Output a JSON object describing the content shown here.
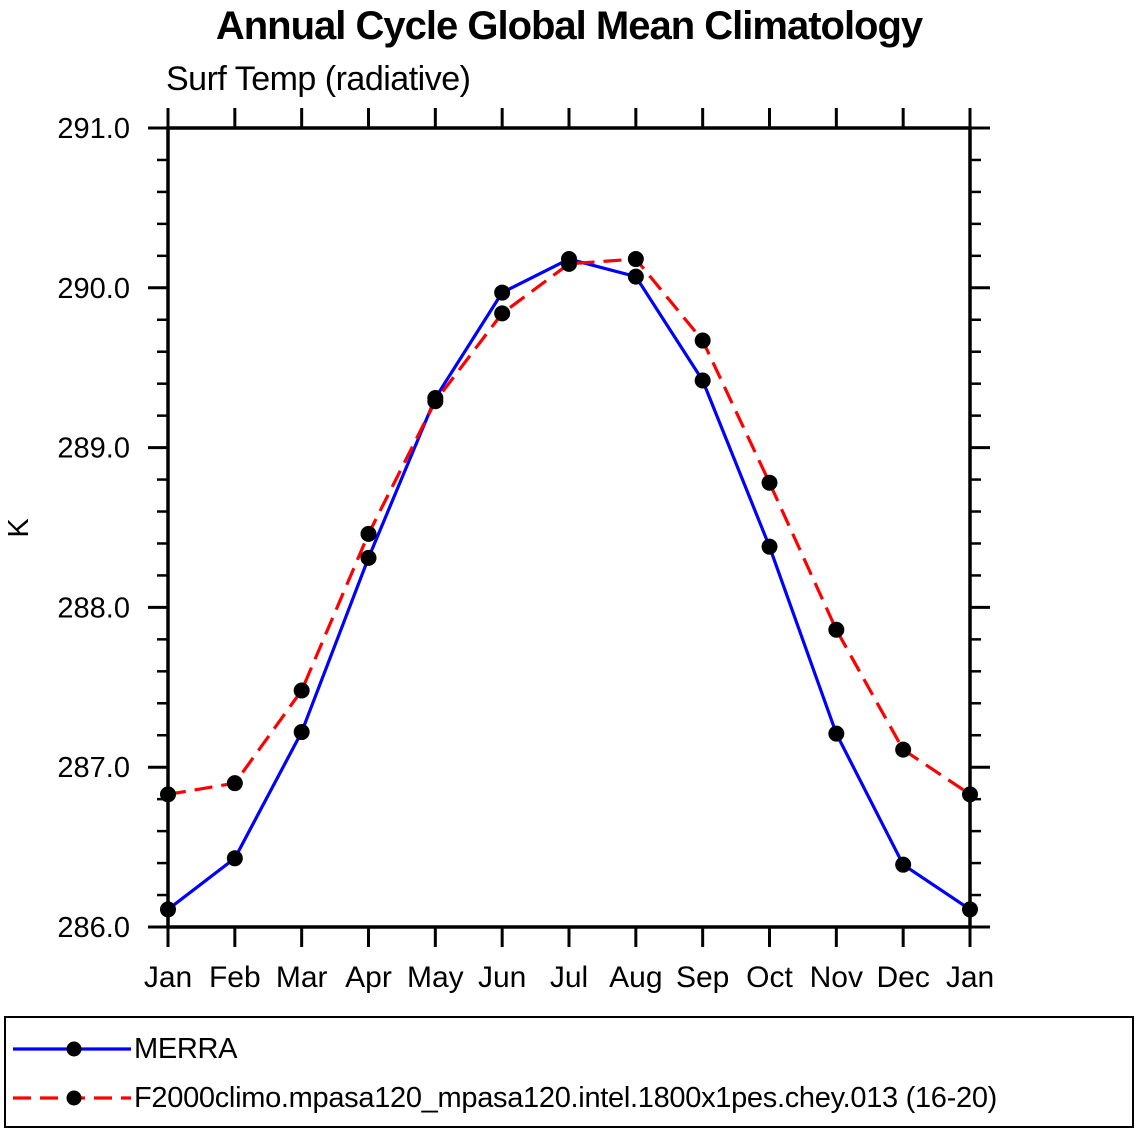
{
  "header": {
    "title": "Annual Cycle Global Mean Climatology",
    "subtitle": "Surf Temp (radiative)"
  },
  "axes": {
    "y_label": "K",
    "y_tick_labels": [
      "291.0",
      "290.0",
      "289.0",
      "288.0",
      "287.0",
      "286.0"
    ],
    "x_tick_labels": [
      "Jan",
      "Feb",
      "Mar",
      "Apr",
      "May",
      "Jun",
      "Jul",
      "Aug",
      "Sep",
      "Oct",
      "Nov",
      "Dec",
      "Jan"
    ]
  },
  "colors": {
    "merra_line": "#0000ff",
    "model_line": "#ff0000",
    "marker": "#000000",
    "axis": "#000000"
  },
  "chart_data": {
    "type": "line",
    "title": "Annual Cycle Global Mean Climatology",
    "subtitle": "Surf Temp (radiative)",
    "xlabel": "",
    "ylabel": "K",
    "categories": [
      "Jan",
      "Feb",
      "Mar",
      "Apr",
      "May",
      "Jun",
      "Jul",
      "Aug",
      "Sep",
      "Oct",
      "Nov",
      "Dec",
      "Jan"
    ],
    "series": [
      {
        "name": "MERRA",
        "color": "#0000ff",
        "line_style": "solid",
        "marker": "filled-circle",
        "marker_color": "#000000",
        "values": [
          286.11,
          286.43,
          287.22,
          288.31,
          289.31,
          289.97,
          290.18,
          290.07,
          289.42,
          288.38,
          287.21,
          286.39,
          286.11
        ]
      },
      {
        "name": "F2000climo.mpasa120_mpasa120.intel.1800x1pes.chey.013 (16-20)",
        "color": "#ff0000",
        "line_style": "dashed",
        "marker": "filled-circle",
        "marker_color": "#000000",
        "values": [
          286.83,
          286.9,
          287.48,
          288.46,
          289.29,
          289.84,
          290.15,
          290.18,
          289.67,
          288.78,
          287.86,
          287.11,
          286.83
        ]
      }
    ],
    "ylim": [
      286.0,
      291.0
    ],
    "ytick_major": 1.0,
    "ytick_minor": 0.2,
    "grid": false,
    "frame": "box",
    "tick_direction": "out",
    "legend_position": "bottom-left-box"
  }
}
